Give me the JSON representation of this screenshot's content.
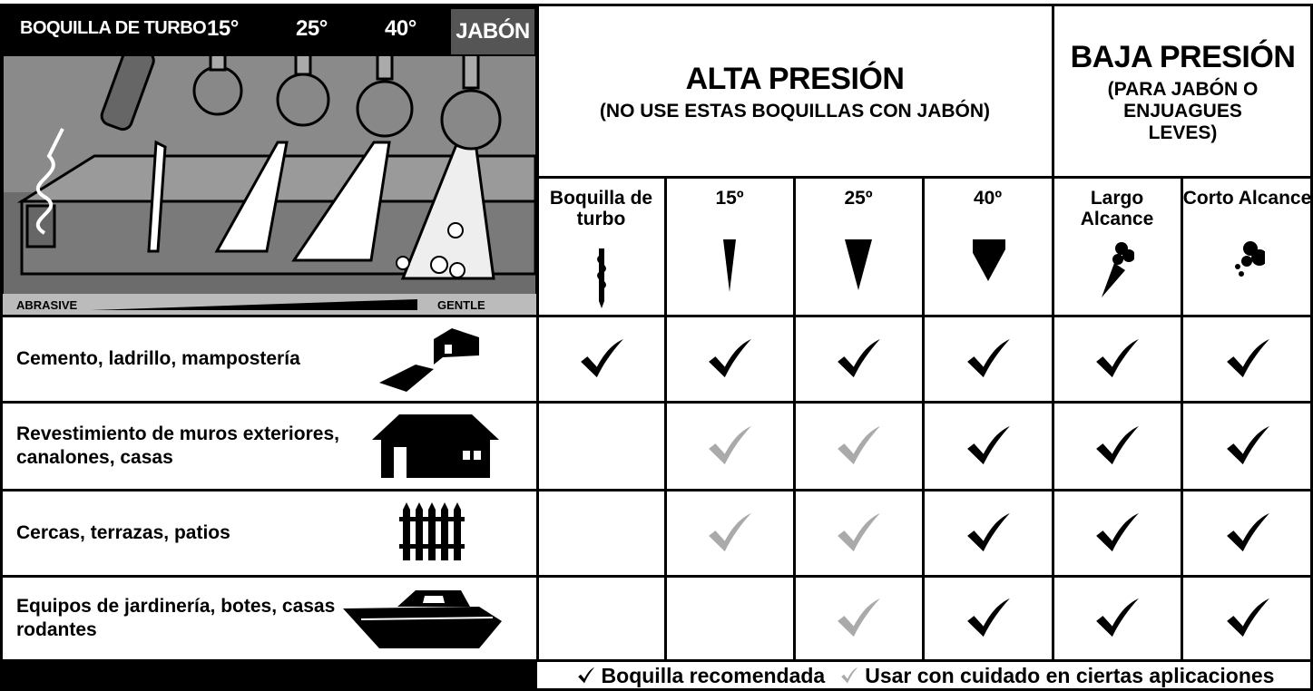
{
  "nozzle_panel": {
    "labels": [
      "BOQUILLA DE TURBO",
      "15°",
      "25°",
      "40°"
    ],
    "soap": "JABÓN",
    "scale": {
      "left": "ABRASIVE",
      "right": "GENTLE"
    }
  },
  "header": {
    "high": {
      "title": "ALTA PRESIÓN",
      "subtitle": "(NO USE ESTAS BOQUILLAS CON JABÓN)"
    },
    "low": {
      "title": "BAJA PRESIÓN",
      "subtitle": "(PARA JABÓN O ENJUAGUES LEVES)"
    }
  },
  "table": {
    "columns": [
      "Boquilla de turbo",
      "15º",
      "25º",
      "40º",
      "Largo Alcance",
      "Corto Alcance"
    ],
    "rows": [
      "Cemento, ladrillo, mampostería",
      "Revestimiento de muros exteriores, canalones, casas",
      "Cercas, terrazas, patios",
      "Equipos de jardinería, botes, casas rodantes"
    ]
  },
  "legend": {
    "recommended": "Boquilla recomendada",
    "caution": "Usar con cuidado en ciertas aplicaciones"
  }
}
